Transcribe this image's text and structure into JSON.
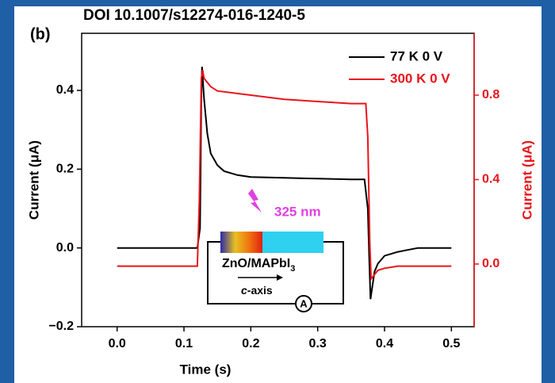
{
  "chart_data": {
    "type": "line",
    "panel_label": "(b)",
    "doi": "DOI 10.1007/s12274-016-1240-5",
    "x_label": "Time (s)",
    "y_label": "Current (μA)",
    "y2_label": "Current (μA)",
    "y2_color": "#e8141b",
    "legend": "upper right",
    "annotations": {
      "wavelength": "325 nm",
      "material": "ZnO/MAPbI",
      "material_subscript": "3",
      "axis_italic": "c",
      "axis_rest": "-axis",
      "ammeter": "A"
    },
    "xlim": [
      -0.053,
      0.534
    ],
    "xticks": [
      {
        "value": 0,
        "label": "0.0"
      },
      0.1,
      0.2,
      0.3,
      0.4,
      0.5
    ],
    "ylim": [
      -0.2,
      0.545
    ],
    "yticks": [
      {
        "value": -0.2,
        "label": "−0.2"
      },
      {
        "value": 0,
        "label": "0.0"
      },
      0.2,
      0.4
    ],
    "y2lim": [
      -0.297,
      1.093
    ],
    "y2ticks": [
      {
        "value": 0,
        "label": "0.0"
      },
      0.4,
      0.8
    ],
    "series": [
      {
        "name": "77 K 0 V",
        "color": "#000000",
        "axis": "y",
        "x": [
          0,
          0.05,
          0.1,
          0.12,
          0.124,
          0.126,
          0.127,
          0.13,
          0.135,
          0.14,
          0.15,
          0.16,
          0.18,
          0.2,
          0.25,
          0.3,
          0.35,
          0.37,
          0.375,
          0.377,
          0.379,
          0.385,
          0.39,
          0.4,
          0.42,
          0.45,
          0.5
        ],
        "values": [
          0.0,
          0.0,
          0.0,
          0.0,
          0.05,
          0.38,
          0.46,
          0.38,
          0.29,
          0.24,
          0.21,
          0.195,
          0.185,
          0.18,
          0.178,
          0.176,
          0.174,
          0.174,
          0.1,
          -0.02,
          -0.13,
          -0.06,
          -0.04,
          -0.02,
          -0.01,
          0.0,
          0.0
        ]
      },
      {
        "name": "300 K 0 V",
        "color": "#e8141b",
        "axis": "y2",
        "x": [
          0,
          0.05,
          0.1,
          0.12,
          0.123,
          0.126,
          0.128,
          0.13,
          0.14,
          0.15,
          0.2,
          0.25,
          0.3,
          0.35,
          0.372,
          0.375,
          0.378,
          0.38,
          0.385,
          0.39,
          0.4,
          0.42,
          0.45,
          0.5
        ],
        "values": [
          -0.01,
          -0.01,
          -0.01,
          -0.01,
          0.3,
          0.88,
          0.92,
          0.88,
          0.84,
          0.82,
          0.8,
          0.78,
          0.77,
          0.76,
          0.76,
          0.6,
          0.1,
          -0.07,
          -0.05,
          -0.03,
          -0.02,
          -0.01,
          -0.01,
          -0.01
        ]
      }
    ]
  }
}
